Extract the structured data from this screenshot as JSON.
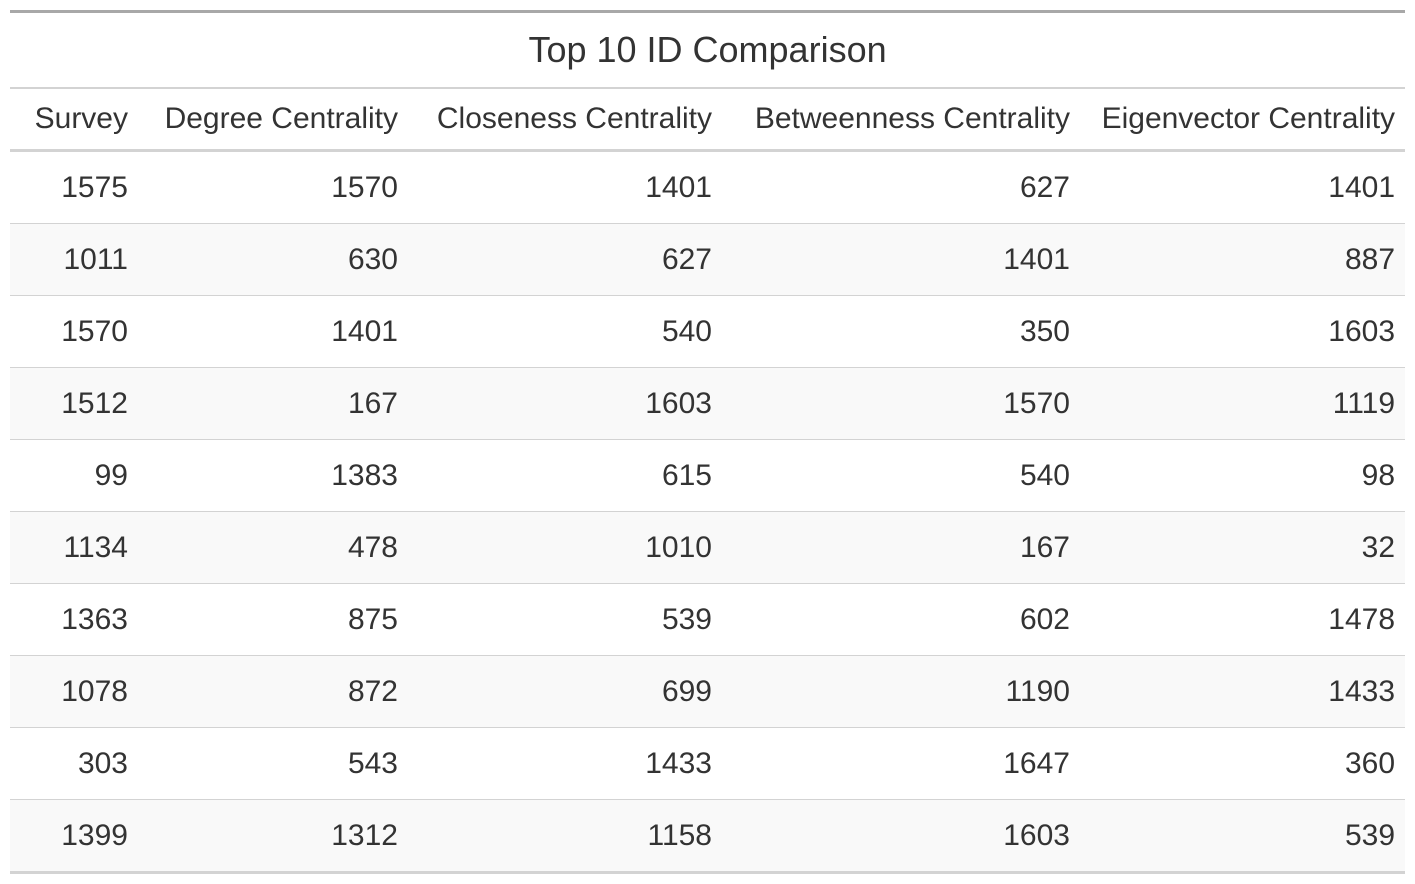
{
  "table": {
    "title": "Top 10 ID Comparison",
    "columns": [
      "Survey",
      "Degree Centrality",
      "Closeness Centrality",
      "Betweenness Centrality",
      "Eigenvector Centrality"
    ],
    "rows": [
      [
        "1575",
        "1570",
        "1401",
        "627",
        "1401"
      ],
      [
        "1011",
        "630",
        "627",
        "1401",
        "887"
      ],
      [
        "1570",
        "1401",
        "540",
        "350",
        "1603"
      ],
      [
        "1512",
        "167",
        "1603",
        "1570",
        "1119"
      ],
      [
        "99",
        "1383",
        "615",
        "540",
        "98"
      ],
      [
        "1134",
        "478",
        "1010",
        "167",
        "32"
      ],
      [
        "1363",
        "875",
        "539",
        "602",
        "1478"
      ],
      [
        "1078",
        "872",
        "699",
        "1190",
        "1433"
      ],
      [
        "303",
        "543",
        "1433",
        "1647",
        "360"
      ],
      [
        "1399",
        "1312",
        "1158",
        "1603",
        "539"
      ]
    ]
  }
}
